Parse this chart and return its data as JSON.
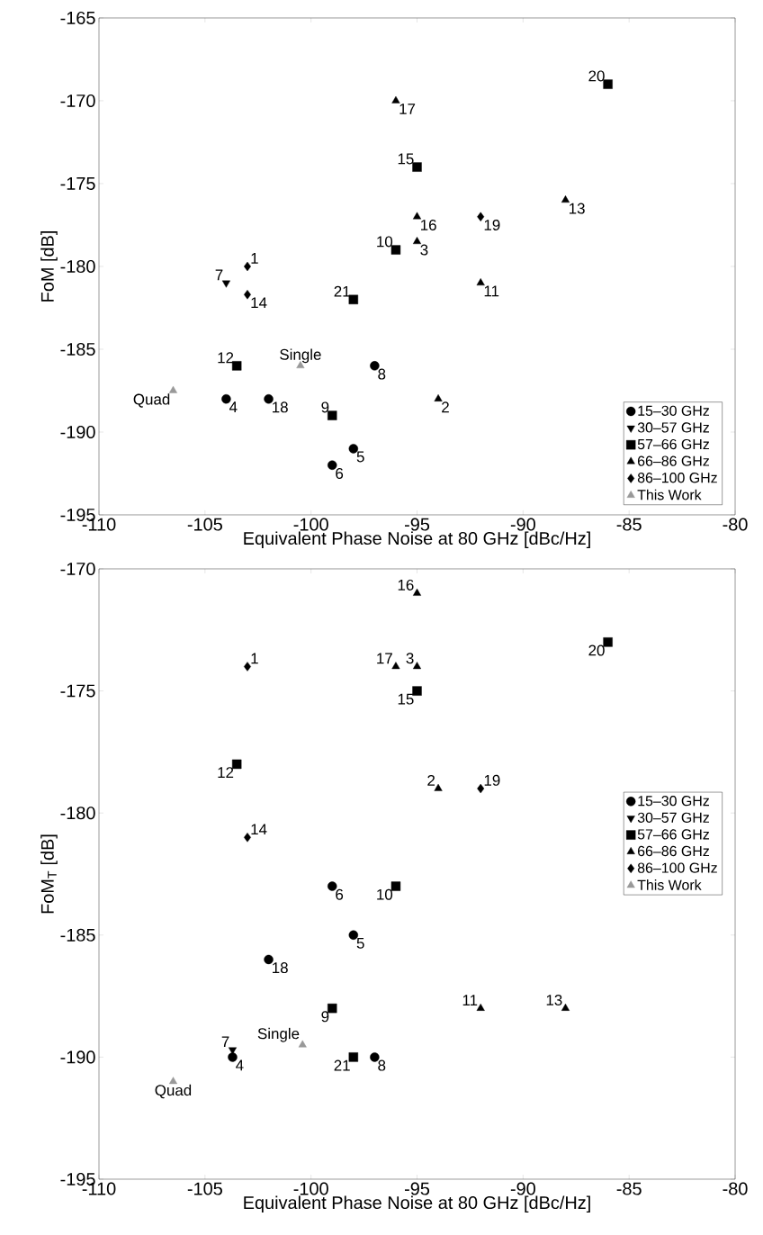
{
  "chart_data": [
    {
      "type": "scatter",
      "xlabel": "Equivalent Phase Noise at 80 GHz [dBc/Hz]",
      "ylabel": "FoM [dB]",
      "xlim": [
        -110,
        -80
      ],
      "ylim": [
        -195,
        -165
      ],
      "xticks": [
        -110,
        -105,
        -100,
        -95,
        -90,
        -85,
        -80
      ],
      "yticks": [
        -195,
        -190,
        -185,
        -180,
        -175,
        -170,
        -165
      ],
      "legend": "bottom right",
      "series": [
        {
          "name": "15–30 GHz",
          "color": "#000000",
          "marker": "circle",
          "x": [
            -104,
            -98,
            -99,
            -97,
            -102
          ],
          "values": [
            -188,
            -191,
            -192,
            -186,
            -188
          ]
        },
        {
          "name": "30–57 GHz",
          "color": "#000000",
          "marker": "triangle_down",
          "x": [
            -104
          ],
          "values": [
            -181
          ]
        },
        {
          "name": "57–66 GHz",
          "color": "#000000",
          "marker": "square",
          "x": [
            -99,
            -96,
            -103.5,
            -95,
            -86,
            -98
          ],
          "values": [
            -189,
            -179,
            -186,
            -174,
            -169,
            -182
          ]
        },
        {
          "name": "66–86 GHz",
          "color": "#000000",
          "marker": "triangle",
          "x": [
            -94,
            -95,
            -92,
            -88,
            -95,
            -96
          ],
          "values": [
            -188,
            -178.5,
            -181,
            -176,
            -177,
            -170
          ]
        },
        {
          "name": "86–100 GHz",
          "color": "#000000",
          "marker": "diamond",
          "x": [
            -103,
            -103,
            -92
          ],
          "values": [
            -180,
            -181.7,
            -177
          ]
        },
        {
          "name": "This Work",
          "color": "#999999",
          "marker": "triangle",
          "x": [
            -100.5,
            -106.5
          ],
          "values": [
            -186,
            -187.5
          ]
        }
      ],
      "annotations": [
        {
          "text": "1",
          "x": -103,
          "y": -180
        },
        {
          "text": "2",
          "x": -94,
          "y": -188
        },
        {
          "text": "3",
          "x": -95,
          "y": -178.5
        },
        {
          "text": "4",
          "x": -104,
          "y": -188
        },
        {
          "text": "5",
          "x": -98,
          "y": -191
        },
        {
          "text": "6",
          "x": -99,
          "y": -192
        },
        {
          "text": "7",
          "x": -104,
          "y": -181
        },
        {
          "text": "8",
          "x": -97,
          "y": -186
        },
        {
          "text": "9",
          "x": -99,
          "y": -189
        },
        {
          "text": "10",
          "x": -96,
          "y": -179
        },
        {
          "text": "11",
          "x": -92,
          "y": -181
        },
        {
          "text": "12",
          "x": -103.5,
          "y": -186
        },
        {
          "text": "13",
          "x": -88,
          "y": -176
        },
        {
          "text": "14",
          "x": -103,
          "y": -181.7
        },
        {
          "text": "15",
          "x": -95,
          "y": -174
        },
        {
          "text": "16",
          "x": -95,
          "y": -177
        },
        {
          "text": "17",
          "x": -96,
          "y": -170
        },
        {
          "text": "18",
          "x": -102,
          "y": -188
        },
        {
          "text": "19",
          "x": -92,
          "y": -177
        },
        {
          "text": "20",
          "x": -86,
          "y": -169
        },
        {
          "text": "21",
          "x": -98,
          "y": -182
        },
        {
          "text": "Single",
          "x": -100.5,
          "y": -186
        },
        {
          "text": "Quad",
          "x": -106.5,
          "y": -187.5
        }
      ]
    },
    {
      "type": "scatter",
      "xlabel": "Equivalent Phase Noise at 80 GHz [dBc/Hz]",
      "ylabel": "FoM$_{T}$ [dB]",
      "xlim": [
        -110,
        -80
      ],
      "ylim": [
        -195,
        -170
      ],
      "xticks": [
        -110,
        -105,
        -100,
        -95,
        -90,
        -85,
        -80
      ],
      "yticks": [
        -195,
        -190,
        -185,
        -180,
        -175,
        -170
      ],
      "legend": "right",
      "series": [
        {
          "name": "15–30 GHz",
          "color": "#000000",
          "marker": "circle",
          "x": [
            -103.7,
            -98,
            -99,
            -97,
            -102
          ],
          "values": [
            -190,
            -185,
            -183,
            -190,
            -186
          ]
        },
        {
          "name": "30–57 GHz",
          "color": "#000000",
          "marker": "triangle_down",
          "x": [
            -103.7
          ],
          "values": [
            -189.7
          ]
        },
        {
          "name": "57–66 GHz",
          "color": "#000000",
          "marker": "square",
          "x": [
            -99,
            -96,
            -103.5,
            -95,
            -86,
            -98
          ],
          "values": [
            -188,
            -183,
            -178,
            -175,
            -173,
            -190
          ]
        },
        {
          "name": "66–86 GHz",
          "color": "#000000",
          "marker": "triangle",
          "x": [
            -94,
            -95,
            -92,
            -88,
            -95,
            -96
          ],
          "values": [
            -179,
            -174,
            -188,
            -188,
            -171,
            -174
          ]
        },
        {
          "name": "86–100 GHz",
          "color": "#000000",
          "marker": "diamond",
          "x": [
            -103,
            -103,
            -92
          ],
          "values": [
            -174,
            -181,
            -179
          ]
        },
        {
          "name": "This Work",
          "color": "#999999",
          "marker": "triangle",
          "x": [
            -100.4,
            -106.5
          ],
          "values": [
            -189.5,
            -191
          ]
        }
      ],
      "annotations": [
        {
          "text": "1",
          "x": -103,
          "y": -174
        },
        {
          "text": "2",
          "x": -94,
          "y": -179
        },
        {
          "text": "3",
          "x": -95,
          "y": -174
        },
        {
          "text": "4",
          "x": -103.7,
          "y": -190
        },
        {
          "text": "5",
          "x": -98,
          "y": -185
        },
        {
          "text": "6",
          "x": -99,
          "y": -183
        },
        {
          "text": "7",
          "x": -103.7,
          "y": -189.7
        },
        {
          "text": "8",
          "x": -97,
          "y": -190
        },
        {
          "text": "9",
          "x": -99,
          "y": -188
        },
        {
          "text": "10",
          "x": -96,
          "y": -183
        },
        {
          "text": "11",
          "x": -92,
          "y": -188
        },
        {
          "text": "12",
          "x": -103.5,
          "y": -178
        },
        {
          "text": "13",
          "x": -88,
          "y": -188
        },
        {
          "text": "14",
          "x": -103,
          "y": -181
        },
        {
          "text": "15",
          "x": -95,
          "y": -175
        },
        {
          "text": "16",
          "x": -95,
          "y": -171
        },
        {
          "text": "17",
          "x": -96,
          "y": -174
        },
        {
          "text": "18",
          "x": -102,
          "y": -186
        },
        {
          "text": "19",
          "x": -92,
          "y": -179
        },
        {
          "text": "20",
          "x": -86,
          "y": -173
        },
        {
          "text": "21",
          "x": -98,
          "y": -190
        },
        {
          "text": "Single",
          "x": -100.4,
          "y": -189.5
        },
        {
          "text": "Quad",
          "x": -106.5,
          "y": -191
        }
      ]
    }
  ]
}
